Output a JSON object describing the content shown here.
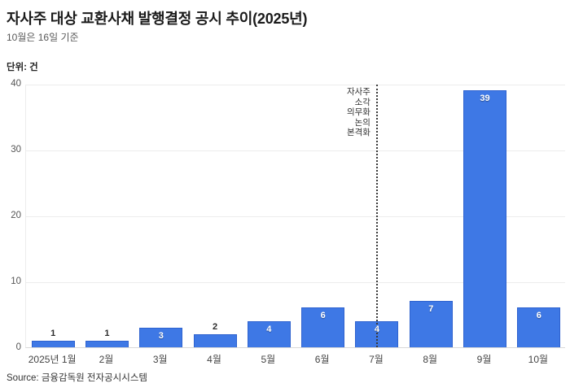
{
  "header": {
    "title": "자사주 대상 교환사채 발행결정 공시 추이(2025년)",
    "subtitle": "10월은 16일 기준"
  },
  "chart_data": {
    "type": "bar",
    "title": "자사주 대상 교환사채 발행결정 공시 추이(2025년)",
    "subtitle": "10월은 16일 기준",
    "unit_label": "단위: 건",
    "categories": [
      "2025년 1월",
      "2월",
      "3월",
      "4월",
      "5월",
      "6월",
      "7월",
      "8월",
      "9월",
      "10월"
    ],
    "values": [
      1,
      1,
      3,
      2,
      4,
      6,
      4,
      7,
      39,
      6
    ],
    "xlabel": "",
    "ylabel": "건",
    "ylim": [
      0,
      40
    ],
    "yticks": [
      0,
      10,
      20,
      30,
      40
    ],
    "grid": true,
    "legend": "none",
    "bar_color": "#3e78e5",
    "bar_border_color": "#2e62cf",
    "annotation": {
      "lines": [
        "자사주",
        "소각",
        "의무화",
        "논의",
        "본격화"
      ],
      "text": "자사주 소각 의무화 논의 본격화",
      "at_category": "7월",
      "at_category_index": 6,
      "line_style": "dotted"
    }
  },
  "source": "Source: 금융감독원 전자공시시스템"
}
